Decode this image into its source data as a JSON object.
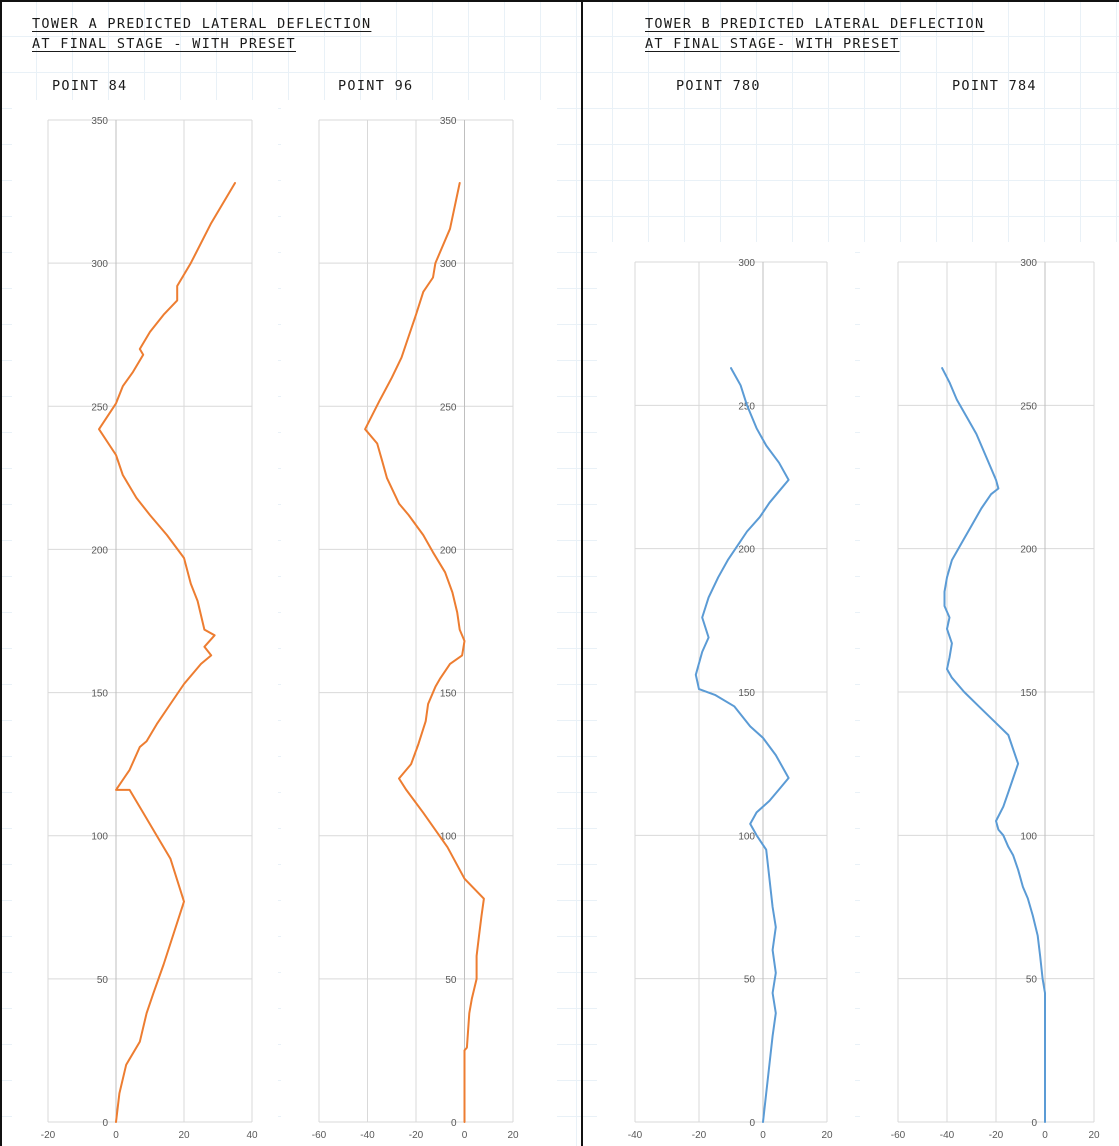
{
  "headings": {
    "tower_a_line1": "TOWER A PREDICTED LATERAL DEFLECTION",
    "tower_a_line2": "AT FINAL STAGE - WITH PRESET",
    "tower_b_line1": "TOWER B PREDICTED LATERAL DEFLECTION",
    "tower_b_line2": "AT FINAL STAGE- WITH PRESET"
  },
  "point_labels": {
    "p84": "POINT 84",
    "p96": "POINT 96",
    "p780": "POINT 780",
    "p784": "POINT 784"
  },
  "colors": {
    "tower_a": "#ed7d31",
    "tower_b": "#5b9bd5"
  },
  "chart_data": [
    {
      "type": "line",
      "title": "POINT 84",
      "xlim": [
        -20,
        40
      ],
      "ylim": [
        0,
        350
      ],
      "xticks": [
        -20,
        0,
        20,
        40
      ],
      "yticks": [
        0,
        50,
        100,
        150,
        200,
        250,
        300,
        350
      ],
      "grid": true,
      "series": [
        {
          "color": "#ed7d31",
          "x": [
            0,
            1,
            3,
            7,
            9,
            11,
            14,
            20,
            16,
            12,
            8,
            4,
            0,
            4,
            7,
            9,
            12,
            16,
            20,
            25,
            28,
            26,
            29,
            26,
            24,
            22,
            20,
            15,
            10,
            6,
            2,
            0,
            -5,
            0,
            2,
            5,
            8,
            7,
            10,
            14,
            18,
            18,
            22,
            28,
            35
          ],
          "y": [
            0,
            10,
            20,
            28,
            38,
            45,
            55,
            77,
            92,
            100,
            108,
            116,
            116,
            123,
            131,
            133,
            139,
            146,
            153,
            160,
            163,
            166,
            170,
            172,
            182,
            188,
            197,
            205,
            212,
            218,
            226,
            233,
            242,
            251,
            257,
            262,
            268,
            270,
            276,
            282,
            287,
            292,
            300,
            314,
            328
          ]
        }
      ]
    },
    {
      "type": "line",
      "title": "POINT 96",
      "xlim": [
        -60,
        20
      ],
      "ylim": [
        0,
        350
      ],
      "xticks": [
        -60,
        -40,
        -20,
        0,
        20
      ],
      "yticks": [
        0,
        50,
        100,
        150,
        200,
        250,
        300,
        350
      ],
      "grid": true,
      "series": [
        {
          "color": "#ed7d31",
          "x": [
            0,
            0,
            0,
            1,
            2,
            3,
            5,
            5,
            6,
            7,
            8,
            0,
            -7,
            -17,
            -24,
            -27,
            -22,
            -19,
            -16,
            -15,
            -12,
            -10,
            -6,
            -1,
            0,
            -2,
            -3,
            -5,
            -8,
            -13,
            -17,
            -23,
            -27,
            -32,
            -34,
            -36,
            -41,
            -35,
            -30,
            -26,
            -24,
            -20,
            -17,
            -13,
            -12,
            -6,
            -2
          ],
          "y": [
            0,
            10,
            25,
            26,
            38,
            43,
            50,
            58,
            65,
            72,
            78,
            85,
            96,
            108,
            116,
            120,
            125,
            132,
            140,
            146,
            152,
            155,
            160,
            163,
            168,
            172,
            178,
            185,
            192,
            199,
            205,
            212,
            216,
            225,
            231,
            237,
            242,
            252,
            260,
            267,
            272,
            282,
            290,
            295,
            300,
            312,
            328
          ]
        }
      ]
    },
    {
      "type": "line",
      "title": "POINT 780",
      "xlim": [
        -40,
        20
      ],
      "ylim": [
        0,
        300
      ],
      "xticks": [
        -40,
        -20,
        0,
        20
      ],
      "yticks": [
        0,
        50,
        100,
        150,
        200,
        250,
        300
      ],
      "grid": true,
      "series": [
        {
          "color": "#5b9bd5",
          "x": [
            0,
            1,
            2,
            3,
            4,
            3,
            4,
            3,
            4,
            3,
            2,
            1,
            -2,
            -4,
            -2,
            2,
            5,
            8,
            4,
            0,
            -4,
            -9,
            -15,
            -20,
            -21,
            -19,
            -17,
            -19,
            -17,
            -14,
            -11,
            -8,
            -5,
            -1,
            2,
            5,
            8,
            5,
            1,
            -2,
            -5,
            -7,
            -10
          ],
          "y": [
            0,
            10,
            20,
            30,
            38,
            45,
            52,
            60,
            68,
            75,
            85,
            95,
            100,
            104,
            108,
            112,
            116,
            120,
            128,
            134,
            138,
            145,
            149,
            151,
            156,
            164,
            169,
            176,
            183,
            190,
            196,
            201,
            206,
            211,
            216,
            220,
            224,
            230,
            236,
            242,
            250,
            257,
            263
          ]
        }
      ]
    },
    {
      "type": "line",
      "title": "POINT 784",
      "xlim": [
        -60,
        20
      ],
      "ylim": [
        0,
        300
      ],
      "xticks": [
        -60,
        -40,
        -20,
        0,
        20
      ],
      "yticks": [
        0,
        50,
        100,
        150,
        200,
        250,
        300
      ],
      "grid": true,
      "series": [
        {
          "color": "#5b9bd5",
          "x": [
            0,
            0,
            0,
            0,
            0,
            -1,
            -2,
            -3,
            -5,
            -7,
            -9,
            -11,
            -13,
            -15,
            -17,
            -19,
            -20,
            -17,
            -15,
            -13,
            -11,
            -15,
            -21,
            -27,
            -33,
            -38,
            -40,
            -39,
            -38,
            -40,
            -39,
            -41,
            -41,
            -40,
            -38,
            -34,
            -30,
            -26,
            -22,
            -19,
            -20,
            -24,
            -28,
            -32,
            -36,
            -39,
            -42
          ],
          "y": [
            0,
            10,
            20,
            30,
            45,
            50,
            58,
            65,
            72,
            78,
            82,
            88,
            93,
            96,
            100,
            102,
            105,
            110,
            115,
            120,
            125,
            135,
            140,
            145,
            150,
            155,
            158,
            162,
            167,
            172,
            176,
            180,
            185,
            190,
            196,
            202,
            208,
            214,
            219,
            221,
            224,
            232,
            240,
            246,
            252,
            258,
            263
          ]
        }
      ]
    }
  ]
}
